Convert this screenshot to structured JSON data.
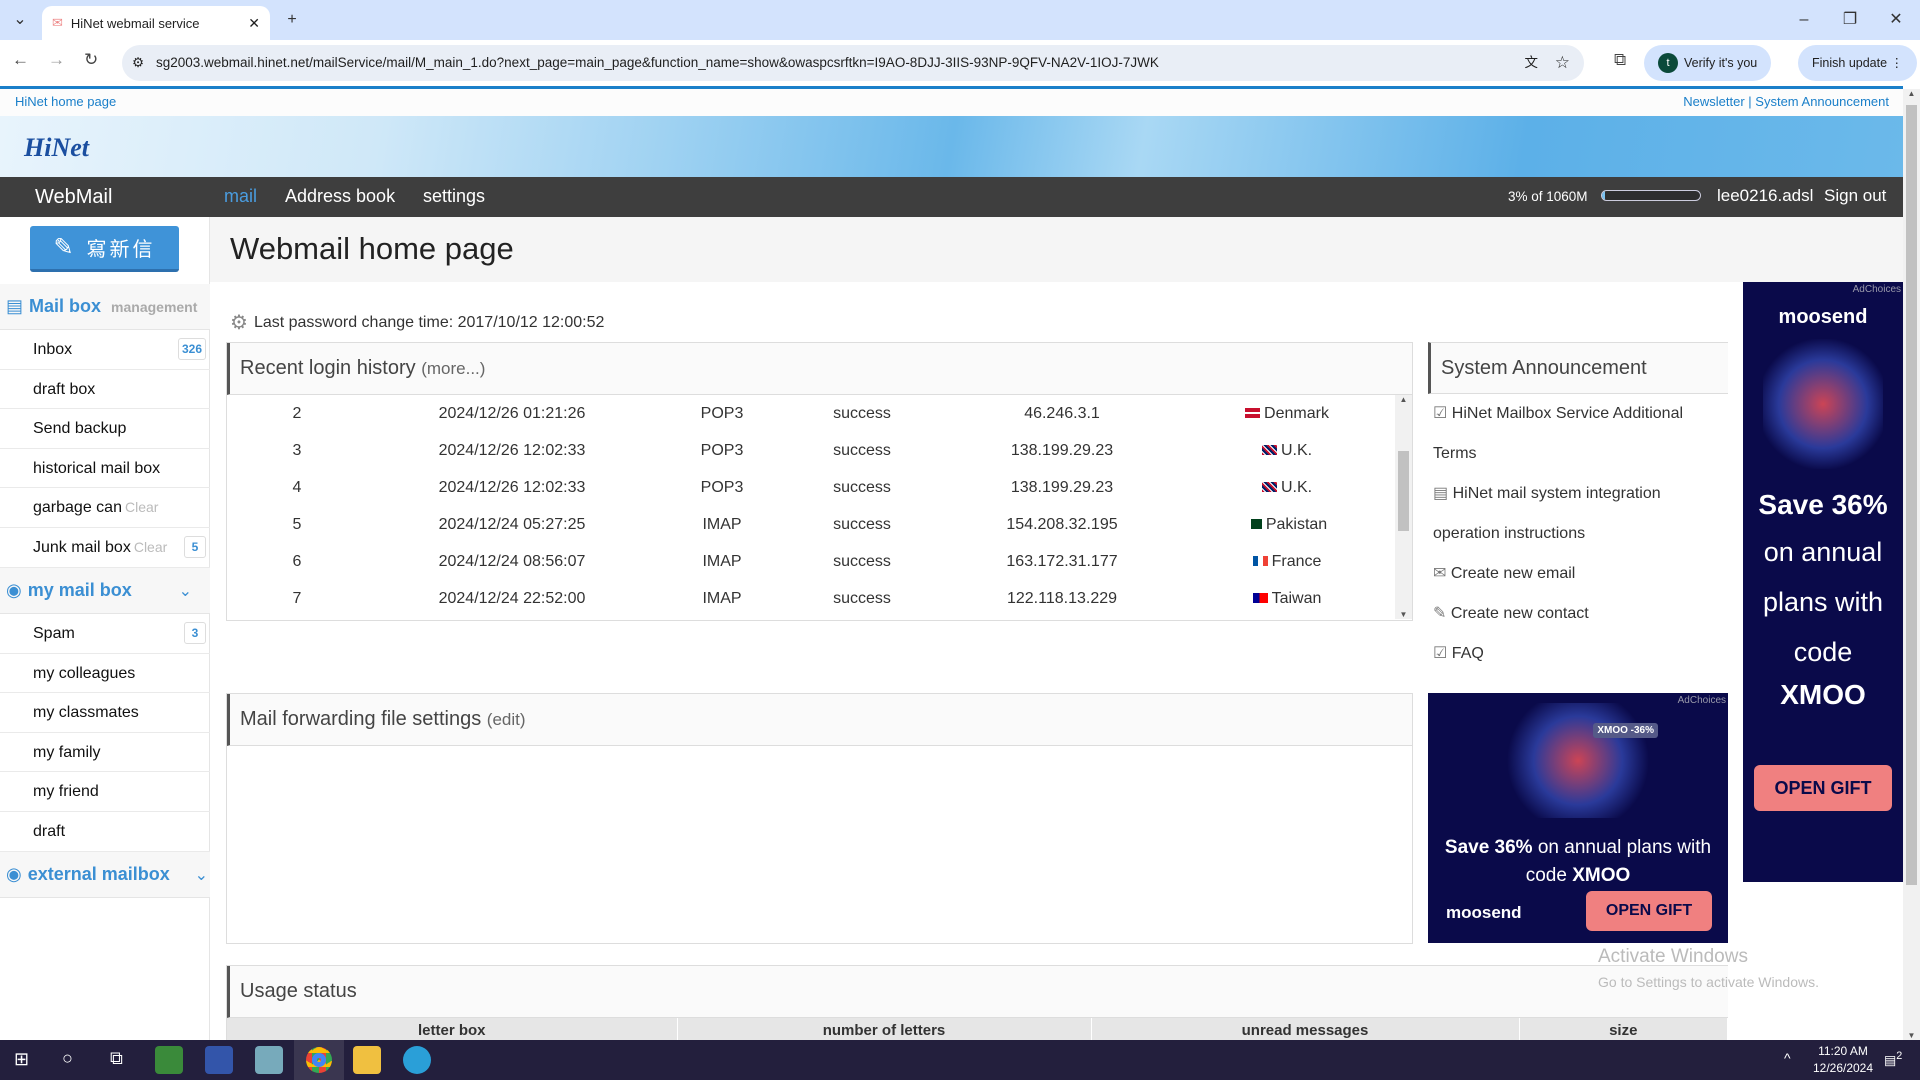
{
  "browser": {
    "tab_title": "HiNet webmail service",
    "url": "sg2003.webmail.hinet.net/mailService/mail/M_main_1.do?next_page=main_page&function_name=show&owaspcsrftkn=I9AO-8DJJ-3IIS-93NP-9QFV-NA2V-1IOJ-7JWK",
    "verify_label": "Verify it's you",
    "update_label": "Finish update",
    "profile_initial": "t"
  },
  "toplinks": {
    "home": "HiNet home page",
    "newsletter": "Newsletter",
    "separator": "|",
    "announcement": "System Announcement"
  },
  "banner": {
    "logo": "HiNet"
  },
  "nav": {
    "brand": "WebMail",
    "items": [
      "mail",
      "Address book",
      "settings"
    ],
    "quota_text": "3% of 1060M",
    "quota_percent": 3,
    "user": "lee0216.adsl",
    "signout": "Sign out",
    "active_color": "#4a9de0"
  },
  "sidebar": {
    "compose": "寫新信",
    "mailbox": {
      "title": "Mail box",
      "sub": "management",
      "items": [
        {
          "label": "Inbox",
          "badge": "326"
        },
        {
          "label": "draft box"
        },
        {
          "label": "Send backup"
        },
        {
          "label": "historical mail box"
        },
        {
          "label": "garbage can",
          "clear": "Clear"
        },
        {
          "label": "Junk mail box",
          "clear": "Clear",
          "badge": "5"
        }
      ]
    },
    "mymailbox": {
      "title": "my mail box",
      "items": [
        {
          "label": "Spam",
          "badge": "3"
        },
        {
          "label": "my colleagues"
        },
        {
          "label": "my classmates"
        },
        {
          "label": "my family"
        },
        {
          "label": "my friend"
        },
        {
          "label": "draft"
        }
      ]
    },
    "external": {
      "title": "external mailbox"
    }
  },
  "main": {
    "title": "Webmail home page",
    "password_line": "Last password change time: 2017/10/12 12:00:52",
    "login": {
      "title": "Recent login history",
      "more": "(more...)",
      "rows": [
        [
          "2",
          "2024/12/26 01:21:26",
          "POP3",
          "success",
          "46.246.3.1",
          "Denmark"
        ],
        [
          "3",
          "2024/12/26 12:02:33",
          "POP3",
          "success",
          "138.199.29.23",
          "U.K."
        ],
        [
          "4",
          "2024/12/26 12:02:33",
          "POP3",
          "success",
          "138.199.29.23",
          "U.K."
        ],
        [
          "5",
          "2024/12/24 05:27:25",
          "IMAP",
          "success",
          "154.208.32.195",
          "Pakistan"
        ],
        [
          "6",
          "2024/12/24 08:56:07",
          "IMAP",
          "success",
          "163.172.31.177",
          "France"
        ],
        [
          "7",
          "2024/12/24 22:52:00",
          "IMAP",
          "success",
          "122.118.13.229",
          "Taiwan"
        ]
      ]
    },
    "forwarding": {
      "title": "Mail forwarding file settings",
      "edit": "(edit)"
    },
    "usage": {
      "title": "Usage status",
      "columns": [
        "letter box",
        "number of letters",
        "unread messages",
        "size"
      ]
    }
  },
  "announcement": {
    "title": "System Announcement",
    "links": [
      "HiNet Mailbox Service Additional Terms",
      "HiNet mail system integration operation instructions",
      "Create new email",
      "Create new contact",
      "FAQ"
    ]
  },
  "ads": {
    "brand": "moosend",
    "adchoices": "AdChoices",
    "tall": {
      "line1": "Save 36%",
      "line2": "on annual plans with code",
      "code": "XMOO",
      "cta": "OPEN GIFT"
    },
    "wide": {
      "bold": "Save 36%",
      "text": "on annual plans with code",
      "code": "XMOO",
      "cta": "OPEN GIFT",
      "tag": "XMOO -36%"
    }
  },
  "watermark": {
    "title": "Activate Windows",
    "sub": "Go to Settings to activate Windows."
  },
  "taskbar": {
    "time": "11:20 AM",
    "date": "12/26/2024",
    "notifications": "2"
  }
}
